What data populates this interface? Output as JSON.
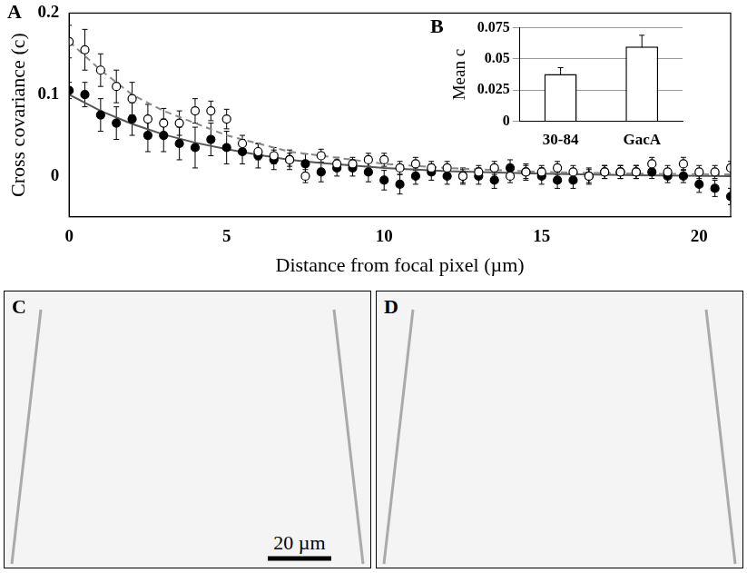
{
  "chart_data": [
    {
      "panel": "A",
      "type": "scatter",
      "x_label": "Distance from focal pixel (µm)",
      "y_label": "Cross covariance (c)",
      "xlim": [
        0,
        21
      ],
      "xticks": [
        0,
        5,
        10,
        15,
        20
      ],
      "ylim": [
        -0.05,
        0.2
      ],
      "yticks": [
        0,
        0.1,
        0.2
      ],
      "grid": false,
      "x": [
        0,
        0.5,
        1,
        1.5,
        2,
        2.5,
        3,
        3.5,
        4,
        4.5,
        5,
        5.5,
        6,
        6.5,
        7,
        7.5,
        8,
        8.5,
        9,
        9.5,
        10,
        10.5,
        11,
        11.5,
        12,
        12.5,
        13,
        13.5,
        14,
        14.5,
        15,
        15.5,
        16,
        16.5,
        17,
        17.5,
        18,
        18.5,
        19,
        19.5,
        20,
        20.5,
        21
      ],
      "series": [
        {
          "color": "#000000",
          "marker": "circle_open",
          "values": [
            0.165,
            0.155,
            0.13,
            0.11,
            0.095,
            0.07,
            0.065,
            0.065,
            0.08,
            0.08,
            0.07,
            0.04,
            0.03,
            0.025,
            0.02,
            0,
            0.025,
            0.015,
            0.015,
            0.02,
            0.02,
            0.01,
            0.015,
            0.01,
            0.01,
            0,
            0.005,
            0.01,
            0,
            0.005,
            0.005,
            0.01,
            0.005,
            0,
            0.005,
            0.005,
            0.005,
            0.015,
            0.005,
            0.015,
            0.005,
            0.005,
            0.01
          ],
          "errors": [
            0.02,
            0.025,
            0.02,
            0.02,
            0.02,
            0.018,
            0.018,
            0.015,
            0.015,
            0.012,
            0.012,
            0.01,
            0.01,
            0.01,
            0.008,
            0.008,
            0.008,
            0.008,
            0.008,
            0.008,
            0.008,
            0.008,
            0.008,
            0.008,
            0.008,
            0.008,
            0.008,
            0.008,
            0.008,
            0.008,
            0.008,
            0.008,
            0.008,
            0.008,
            0.008,
            0.008,
            0.008,
            0.008,
            0.008,
            0.008,
            0.008,
            0.008,
            0.008
          ]
        },
        {
          "color": "#000000",
          "marker": "circle",
          "values": [
            0.105,
            0.1,
            0.075,
            0.065,
            0.07,
            0.05,
            0.05,
            0.04,
            0.035,
            0.045,
            0.035,
            0.03,
            0.025,
            0.02,
            0.02,
            0.015,
            0.005,
            0.01,
            0.01,
            0.005,
            -0.005,
            -0.01,
            0,
            0.005,
            0,
            0,
            0,
            -0.005,
            0.01,
            0.005,
            0,
            -0.005,
            -0.005,
            0,
            0.005,
            0.005,
            0.005,
            0.005,
            0,
            0,
            -0.01,
            -0.015,
            -0.025
          ],
          "errors": [
            0.01,
            0.015,
            0.02,
            0.02,
            0.02,
            0.02,
            0.02,
            0.02,
            0.025,
            0.02,
            0.02,
            0.015,
            0.015,
            0.012,
            0.012,
            0.012,
            0.012,
            0.01,
            0.01,
            0.012,
            0.012,
            0.012,
            0.01,
            0.01,
            0.01,
            0.01,
            0.01,
            0.01,
            0.01,
            0.01,
            0.01,
            0.01,
            0.01,
            0.01,
            0.008,
            0.008,
            0.008,
            0.008,
            0.008,
            0.008,
            0.01,
            0.01,
            0.01
          ]
        },
        {
          "type": "line",
          "line_style": "dashed",
          "color": "#888888",
          "x": [
            0,
            1,
            2,
            3,
            4,
            5,
            6,
            7,
            8,
            10,
            12,
            15,
            18,
            21
          ],
          "values": [
            0.165,
            0.13,
            0.1,
            0.08,
            0.065,
            0.05,
            0.04,
            0.03,
            0.025,
            0.015,
            0.01,
            0.005,
            0.003,
            0.002
          ]
        },
        {
          "type": "line",
          "line_style": "solid",
          "color": "#555555",
          "x": [
            0,
            1,
            2,
            3,
            4,
            5,
            6,
            7,
            8,
            10,
            12,
            15,
            18,
            21
          ],
          "values": [
            0.1,
            0.08,
            0.064,
            0.051,
            0.041,
            0.033,
            0.026,
            0.02,
            0.016,
            0.01,
            0.006,
            0.003,
            0.001,
            0
          ]
        }
      ]
    },
    {
      "panel": "B",
      "type": "bar",
      "y_label": "Mean c",
      "categories": [
        "30-84",
        "GacA"
      ],
      "values": [
        0.038,
        0.06
      ],
      "errors": [
        0.005,
        0.009
      ],
      "color": "#ffffff",
      "ylim": [
        0,
        0.075
      ],
      "yticks": [
        0,
        0.025,
        0.05,
        0.075
      ],
      "grid": true
    }
  ],
  "images": [
    {
      "panel": "C",
      "scale_bar": "20 µm"
    },
    {
      "panel": "D"
    }
  ]
}
